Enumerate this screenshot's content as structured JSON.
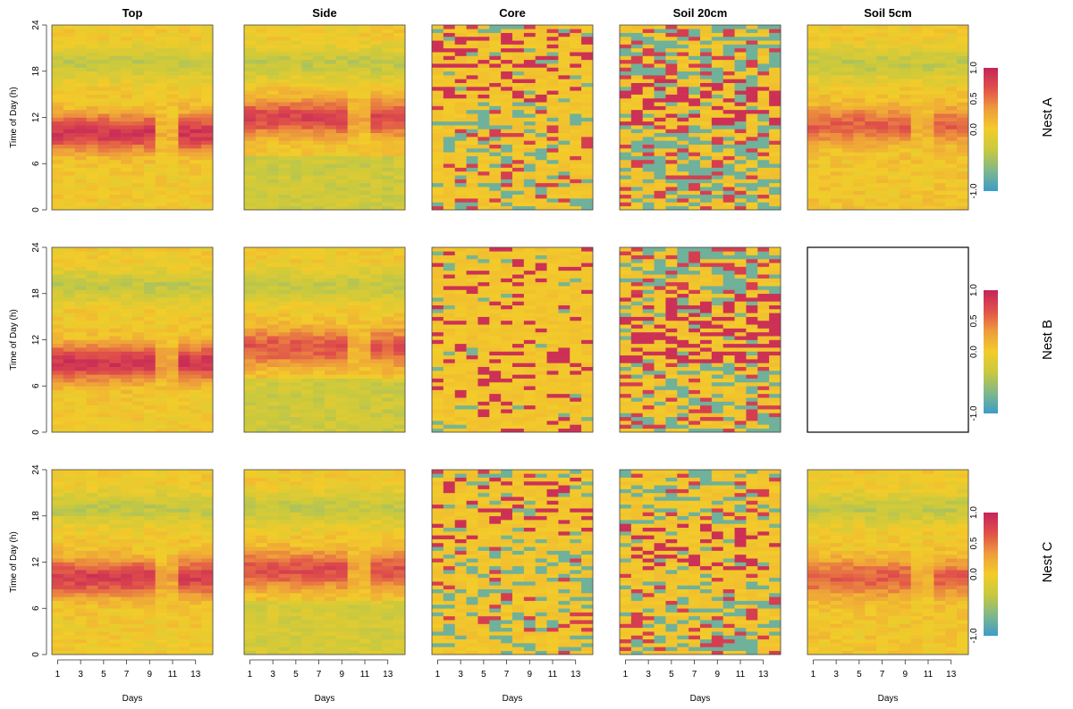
{
  "chart_data": {
    "type": "heatmap",
    "columns": [
      "Top",
      "Side",
      "Core",
      "Soil 20cm",
      "Soil 5cm"
    ],
    "rows": [
      "Nest A",
      "Nest B",
      "Nest C"
    ],
    "ylabel": "Time of Day (h)",
    "xlabel": "Days",
    "ylim": [
      0,
      24
    ],
    "yticks": [
      0,
      6,
      12,
      18,
      24
    ],
    "xlim": [
      1,
      14
    ],
    "xticks": [
      1,
      3,
      5,
      7,
      9,
      11,
      13
    ],
    "colorbar": {
      "range": [
        -1.0,
        1.0
      ],
      "ticks": [
        "1.0",
        "0.5",
        "0.0",
        "-1.0"
      ],
      "tick_values": [
        1.0,
        0.5,
        0.0,
        -1.0
      ],
      "colors": [
        "#3d9cc9",
        "#7fb88a",
        "#c8c93f",
        "#f2cc2a",
        "#ee9c3c",
        "#e0504a",
        "#c4245a"
      ]
    },
    "panels": [
      {
        "row": "Nest A",
        "column": "Top",
        "style": "smooth",
        "peak_hour": 10,
        "peak_value": 0.85,
        "day_days": [
          1,
          2,
          3,
          4,
          5,
          6,
          7,
          8,
          9,
          12,
          13,
          14
        ],
        "night_value": 0.0
      },
      {
        "row": "Nest A",
        "column": "Side",
        "style": "smooth",
        "peak_hour": 12,
        "peak_value": 0.75,
        "night_value": -0.35
      },
      {
        "row": "Nest A",
        "column": "Core",
        "style": "striped",
        "stripe_density": 0.35,
        "warm_hours": [
          14,
          23
        ]
      },
      {
        "row": "Nest A",
        "column": "Soil 20cm",
        "style": "striped",
        "stripe_density": 0.55,
        "warm_hours": [
          11,
          17
        ]
      },
      {
        "row": "Nest A",
        "column": "Soil 5cm",
        "style": "smooth",
        "peak_hour": 11,
        "peak_value": 0.6,
        "night_value": 0.05
      },
      {
        "row": "Nest B",
        "column": "Top",
        "style": "smooth",
        "peak_hour": 9,
        "peak_value": 0.85,
        "night_value": 0.0
      },
      {
        "row": "Nest B",
        "column": "Side",
        "style": "smooth",
        "peak_hour": 11,
        "peak_value": 0.65,
        "night_value": -0.35
      },
      {
        "row": "Nest B",
        "column": "Core",
        "style": "striped",
        "stripe_density": 0.2,
        "warm_hours": [
          0,
          24
        ]
      },
      {
        "row": "Nest B",
        "column": "Soil 20cm",
        "style": "striped",
        "stripe_density": 0.5,
        "warm_hours": [
          9,
          18
        ]
      },
      {
        "row": "Nest B",
        "column": "Soil 5cm",
        "style": "empty"
      },
      {
        "row": "Nest C",
        "column": "Top",
        "style": "smooth",
        "peak_hour": 10,
        "peak_value": 0.8,
        "night_value": 0.0
      },
      {
        "row": "Nest C",
        "column": "Side",
        "style": "smooth",
        "peak_hour": 11,
        "peak_value": 0.7,
        "night_value": -0.3
      },
      {
        "row": "Nest C",
        "column": "Core",
        "style": "striped",
        "stripe_density": 0.3,
        "warm_hours": [
          14,
          23
        ]
      },
      {
        "row": "Nest C",
        "column": "Soil 20cm",
        "style": "striped",
        "stripe_density": 0.4,
        "warm_hours": [
          11,
          17
        ]
      },
      {
        "row": "Nest C",
        "column": "Soil 5cm",
        "style": "smooth",
        "peak_hour": 10,
        "peak_value": 0.6,
        "night_value": 0.05
      }
    ]
  }
}
